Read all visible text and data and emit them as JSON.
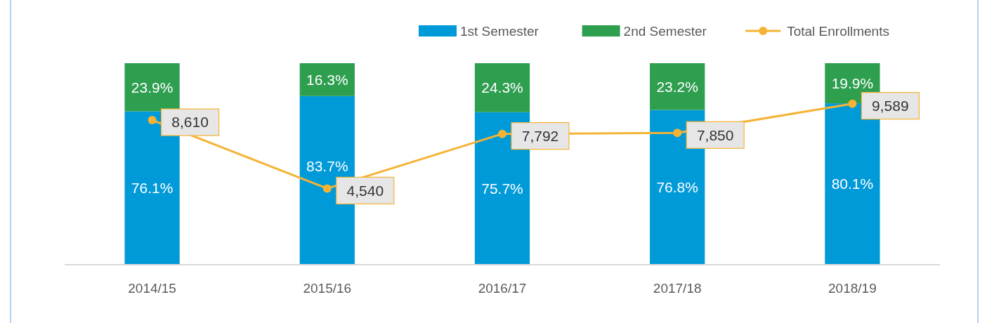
{
  "chart_data": {
    "type": "bar",
    "categories": [
      "2014/15",
      "2015/16",
      "2016/17",
      "2017/18",
      "2018/19"
    ],
    "stacked": true,
    "ylim": [
      0,
      100
    ],
    "y2lim": [
      0,
      12000
    ],
    "tick_labels": "x",
    "legend": "top right",
    "series": [
      {
        "name": "1st Semester",
        "color": "#009ad9",
        "values": [
          76.1,
          83.7,
          75.7,
          76.8,
          80.1
        ],
        "value_labels": [
          "76.1%",
          "83.7%",
          "75.7%",
          "76.8%",
          "80.1%"
        ]
      },
      {
        "name": "2nd Semester",
        "color": "#2e9e4f",
        "values": [
          23.9,
          16.3,
          24.3,
          23.2,
          19.9
        ],
        "value_labels": [
          "23.9%",
          "16.3%",
          "24.3%",
          "23.2%",
          "19.9%"
        ]
      },
      {
        "name": "Total Enrollments",
        "type": "line",
        "axis": "y2",
        "marker": "circle",
        "color": "#f5b335",
        "values": [
          8610,
          4540,
          7792,
          7850,
          9589
        ],
        "value_labels": [
          "8,610",
          "4,540",
          "7,792",
          "7,850",
          "9,589"
        ]
      }
    ]
  }
}
